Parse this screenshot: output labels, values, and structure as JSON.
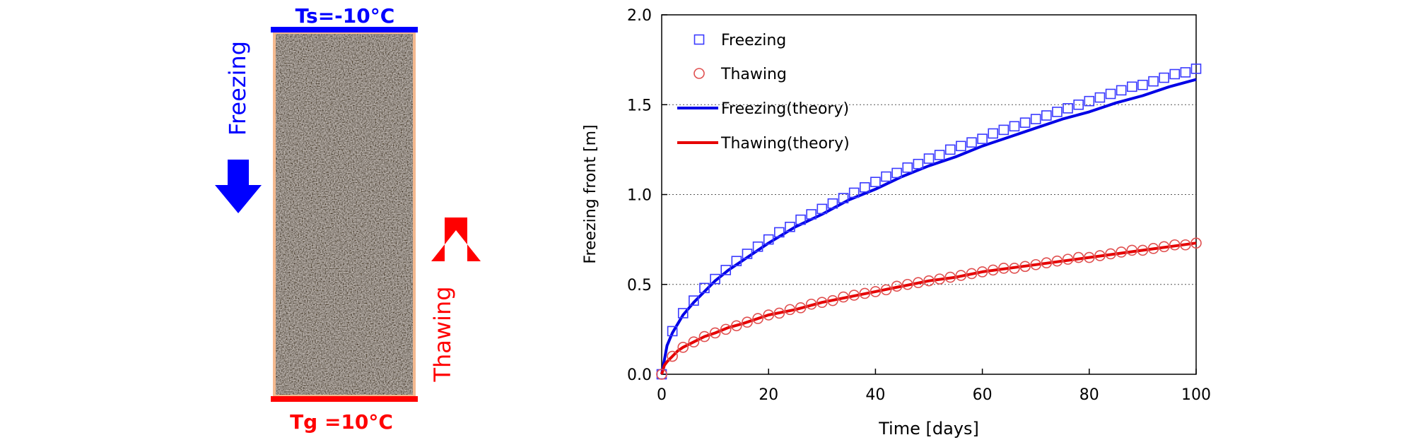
{
  "diagram": {
    "top_label": "Ts=-10°C",
    "bottom_label": "Tg =10°C",
    "left_label": "Freezing",
    "right_label": "Thawing",
    "colors": {
      "freeze": "#0000ff",
      "thaw": "#ff0000",
      "soil_border": "#f4b98f"
    }
  },
  "chart_data": {
    "type": "line",
    "xlabel": "Time [days]",
    "ylabel": "Freezing front [m]",
    "xlim": [
      0,
      100
    ],
    "ylim": [
      0,
      2.0
    ],
    "xticks": [
      0,
      20,
      40,
      60,
      80,
      100
    ],
    "xtick_labels": [
      "0",
      "20",
      "40",
      "60",
      "80",
      "100"
    ],
    "yticks": [
      0,
      0.5,
      1.0,
      1.5,
      2.0
    ],
    "ytick_labels": [
      "0.0",
      "0.5",
      "1.0",
      "1.5",
      "2.0"
    ],
    "grid": "horizontal-dotted",
    "legend_position": "top-left",
    "series": [
      {
        "name": "Freezing",
        "kind": "markers",
        "marker": "square",
        "color": "#3a3aff",
        "x": [
          0,
          2,
          4,
          6,
          8,
          10,
          12,
          14,
          16,
          18,
          20,
          22,
          24,
          26,
          28,
          30,
          32,
          34,
          36,
          38,
          40,
          42,
          44,
          46,
          48,
          50,
          52,
          54,
          56,
          58,
          60,
          62,
          64,
          66,
          68,
          70,
          72,
          74,
          76,
          78,
          80,
          82,
          84,
          86,
          88,
          90,
          92,
          94,
          96,
          98,
          100
        ],
        "y": [
          0.0,
          0.24,
          0.34,
          0.41,
          0.48,
          0.53,
          0.58,
          0.63,
          0.67,
          0.71,
          0.75,
          0.79,
          0.82,
          0.86,
          0.89,
          0.92,
          0.95,
          0.98,
          1.01,
          1.04,
          1.07,
          1.1,
          1.12,
          1.15,
          1.17,
          1.2,
          1.22,
          1.25,
          1.27,
          1.29,
          1.31,
          1.34,
          1.36,
          1.38,
          1.4,
          1.42,
          1.44,
          1.46,
          1.48,
          1.5,
          1.52,
          1.54,
          1.56,
          1.58,
          1.6,
          1.61,
          1.63,
          1.65,
          1.67,
          1.68,
          1.7
        ]
      },
      {
        "name": "Thawing",
        "kind": "markers",
        "marker": "circle",
        "color": "#e05050",
        "x": [
          0,
          2,
          4,
          6,
          8,
          10,
          12,
          14,
          16,
          18,
          20,
          22,
          24,
          26,
          28,
          30,
          32,
          34,
          36,
          38,
          40,
          42,
          44,
          46,
          48,
          50,
          52,
          54,
          56,
          58,
          60,
          62,
          64,
          66,
          68,
          70,
          72,
          74,
          76,
          78,
          80,
          82,
          84,
          86,
          88,
          90,
          92,
          94,
          96,
          98,
          100
        ],
        "y": [
          0.0,
          0.1,
          0.15,
          0.18,
          0.21,
          0.23,
          0.25,
          0.27,
          0.29,
          0.31,
          0.33,
          0.34,
          0.36,
          0.37,
          0.39,
          0.4,
          0.41,
          0.43,
          0.44,
          0.45,
          0.46,
          0.47,
          0.49,
          0.5,
          0.51,
          0.52,
          0.53,
          0.54,
          0.55,
          0.56,
          0.57,
          0.58,
          0.59,
          0.59,
          0.6,
          0.61,
          0.62,
          0.63,
          0.64,
          0.65,
          0.65,
          0.66,
          0.67,
          0.68,
          0.69,
          0.69,
          0.7,
          0.71,
          0.72,
          0.72,
          0.73
        ]
      },
      {
        "name": "Freezing(theory)",
        "kind": "line",
        "color": "#0000e6",
        "x": [
          0,
          0.5,
          1,
          2,
          3,
          4,
          6,
          8,
          10,
          12.5,
          15,
          20,
          25,
          30,
          35,
          40,
          45,
          50,
          55,
          60,
          65,
          70,
          75,
          80,
          85,
          90,
          95,
          100
        ],
        "y": [
          0.0,
          0.08,
          0.16,
          0.23,
          0.28,
          0.33,
          0.4,
          0.46,
          0.52,
          0.58,
          0.63,
          0.73,
          0.82,
          0.89,
          0.97,
          1.03,
          1.1,
          1.16,
          1.21,
          1.27,
          1.32,
          1.37,
          1.42,
          1.46,
          1.51,
          1.55,
          1.6,
          1.64
        ]
      },
      {
        "name": "Thawing(theory)",
        "kind": "line",
        "color": "#e60000",
        "x": [
          0,
          0.5,
          1,
          2,
          3,
          4,
          6,
          8,
          10,
          12.5,
          15,
          20,
          25,
          30,
          35,
          40,
          45,
          50,
          55,
          60,
          65,
          70,
          75,
          80,
          85,
          90,
          95,
          100
        ],
        "y": [
          0.0,
          0.05,
          0.07,
          0.1,
          0.13,
          0.15,
          0.18,
          0.21,
          0.23,
          0.26,
          0.28,
          0.33,
          0.36,
          0.4,
          0.43,
          0.46,
          0.49,
          0.52,
          0.54,
          0.57,
          0.59,
          0.61,
          0.63,
          0.65,
          0.67,
          0.69,
          0.71,
          0.73
        ]
      }
    ]
  }
}
